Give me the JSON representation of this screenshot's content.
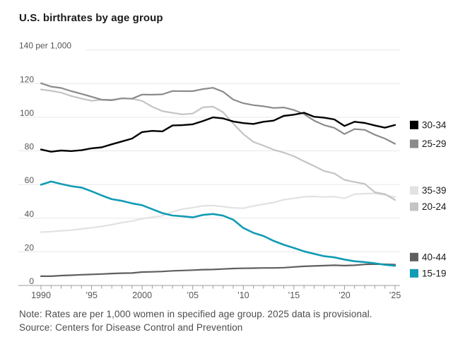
{
  "chart_data": {
    "type": "line",
    "title": "U.S. birthrates by age group",
    "unit_label": "140 per 1,000",
    "grid": "horizontal",
    "legend_position": "right",
    "ylim": [
      0,
      140
    ],
    "y_ticks": [
      0,
      20,
      40,
      60,
      80,
      100,
      120
    ],
    "y_top_tick": 140,
    "x": [
      1990,
      1991,
      1992,
      1993,
      1994,
      1995,
      1996,
      1997,
      1998,
      1999,
      2000,
      2001,
      2002,
      2003,
      2004,
      2005,
      2006,
      2007,
      2008,
      2009,
      2010,
      2011,
      2012,
      2013,
      2014,
      2015,
      2016,
      2017,
      2018,
      2019,
      2020,
      2021,
      2022,
      2023,
      2024,
      2025
    ],
    "x_tick_labels": [
      {
        "year": 1990,
        "label": "1990"
      },
      {
        "year": 1995,
        "label": "’95"
      },
      {
        "year": 2000,
        "label": "2000"
      },
      {
        "year": 2005,
        "label": "’05"
      },
      {
        "year": 2010,
        "label": "’10"
      },
      {
        "year": 2015,
        "label": "’15"
      },
      {
        "year": 2020,
        "label": "’20"
      },
      {
        "year": 2025,
        "label": "’25"
      }
    ],
    "series": [
      {
        "name": "30-34",
        "color": "#000000",
        "width": 2.4,
        "values": [
          80.8,
          79.5,
          80.2,
          79.9,
          80.4,
          81.5,
          82.1,
          83.9,
          85.6,
          87.3,
          91.2,
          91.9,
          91.6,
          95.1,
          95.3,
          95.8,
          97.7,
          99.9,
          99.3,
          97.5,
          96.5,
          96.0,
          97.3,
          98.0,
          100.8,
          101.5,
          102.7,
          100.3,
          99.7,
          98.7,
          94.8,
          97.3,
          96.6,
          95.1,
          93.8,
          95.4
        ]
      },
      {
        "name": "25-29",
        "color": "#8b8b8b",
        "width": 2.2,
        "values": [
          120.2,
          118.2,
          117.4,
          115.5,
          113.9,
          112.2,
          110.4,
          110.1,
          111.2,
          111.0,
          113.5,
          113.4,
          113.6,
          115.6,
          115.5,
          115.5,
          116.7,
          117.5,
          115.1,
          110.5,
          108.3,
          107.2,
          106.5,
          105.5,
          105.8,
          104.3,
          101.9,
          98.0,
          95.3,
          93.7,
          90.0,
          93.0,
          92.5,
          89.6,
          87.3,
          84.2
        ]
      },
      {
        "name": "35-39",
        "color": "#e2e2e2",
        "width": 2.2,
        "values": [
          31.7,
          32.0,
          32.5,
          32.9,
          33.6,
          34.3,
          35.1,
          36.1,
          37.4,
          38.3,
          39.7,
          40.6,
          41.4,
          43.8,
          45.4,
          46.3,
          47.3,
          47.5,
          46.9,
          46.1,
          45.9,
          47.2,
          48.3,
          49.3,
          51.0,
          51.8,
          52.7,
          52.9,
          52.6,
          52.8,
          51.8,
          54.2,
          54.6,
          54.7,
          53.8,
          52.5
        ]
      },
      {
        "name": "20-24",
        "color": "#c4c4c4",
        "width": 2.2,
        "values": [
          116.5,
          115.7,
          114.6,
          112.6,
          111.1,
          109.8,
          110.4,
          110.4,
          111.2,
          111.0,
          109.7,
          106.2,
          103.6,
          102.6,
          101.7,
          102.2,
          105.9,
          106.3,
          103.0,
          96.2,
          90.0,
          85.3,
          83.1,
          80.7,
          79.0,
          76.8,
          73.8,
          71.0,
          68.0,
          66.6,
          62.8,
          61.5,
          60.4,
          55.4,
          54.3,
          50.8
        ]
      },
      {
        "name": "40-44",
        "color": "#5f5f5f",
        "width": 2.2,
        "values": [
          5.5,
          5.5,
          5.9,
          6.1,
          6.4,
          6.6,
          6.8,
          7.1,
          7.3,
          7.4,
          8.0,
          8.1,
          8.3,
          8.7,
          8.9,
          9.1,
          9.4,
          9.5,
          9.8,
          10.1,
          10.2,
          10.3,
          10.4,
          10.4,
          10.6,
          11.0,
          11.4,
          11.6,
          11.8,
          12.0,
          11.8,
          12.0,
          12.5,
          12.7,
          12.6,
          12.4
        ]
      },
      {
        "name": "15-19",
        "color": "#119bb4",
        "width": 2.6,
        "values": [
          59.9,
          61.8,
          60.3,
          59.0,
          58.2,
          56.0,
          53.5,
          51.3,
          50.3,
          48.8,
          47.7,
          45.3,
          43.0,
          41.6,
          41.1,
          40.5,
          41.9,
          42.5,
          41.5,
          39.1,
          34.2,
          31.3,
          29.4,
          26.5,
          24.2,
          22.3,
          20.3,
          18.8,
          17.4,
          16.7,
          15.4,
          14.4,
          13.9,
          13.2,
          12.3,
          11.7
        ]
      }
    ],
    "colors": {
      "gridline": "#e7e7e7",
      "axis": "#9b9b9b",
      "axis_label": "#565656",
      "legend_label": "#1a1a1a"
    }
  },
  "note": "Note: Rates are per 1,000 women in specified age group. 2025 data is provisional.",
  "source": "Source: Centers for Disease Control and Prevention"
}
